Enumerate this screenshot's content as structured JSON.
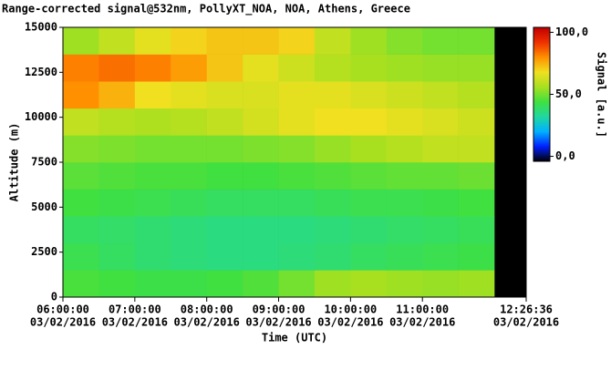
{
  "chart_data": {
    "type": "heatmap",
    "title": "Range-corrected signal@532nm, PollyXT_NOA, NOA, Athens, Greece",
    "xlabel": "Time (UTC)",
    "ylabel": "Altitude (m)",
    "colorbar_label": "Signal [a.u.]",
    "x_edges": [
      6,
      6.5,
      7,
      7.5,
      8,
      8.5,
      9,
      9.5,
      10,
      10.5,
      11,
      11.5,
      12
    ],
    "y_edges": [
      0,
      1500,
      3000,
      4500,
      6000,
      7500,
      9000,
      10500,
      12000,
      13500,
      15000
    ],
    "z": [
      [
        45,
        44,
        43,
        43,
        44,
        46,
        50,
        55,
        56,
        55,
        54,
        55
      ],
      [
        42,
        40,
        38,
        37,
        36,
        36,
        37,
        38,
        40,
        41,
        42,
        43
      ],
      [
        40,
        39,
        38,
        37,
        36,
        36,
        36,
        37,
        38,
        39,
        40,
        41
      ],
      [
        44,
        43,
        42,
        41,
        40,
        40,
        40,
        41,
        42,
        42,
        43,
        44
      ],
      [
        47,
        46,
        45,
        45,
        44,
        44,
        45,
        46,
        47,
        48,
        48,
        49
      ],
      [
        52,
        51,
        50,
        50,
        50,
        51,
        52,
        54,
        56,
        58,
        60,
        60
      ],
      [
        60,
        58,
        57,
        58,
        60,
        63,
        66,
        68,
        68,
        66,
        64,
        62
      ],
      [
        80,
        75,
        68,
        66,
        64,
        64,
        66,
        66,
        64,
        62,
        60,
        58
      ],
      [
        82,
        84,
        82,
        78,
        72,
        66,
        62,
        58,
        56,
        55,
        54,
        54
      ],
      [
        55,
        60,
        66,
        70,
        72,
        72,
        70,
        60,
        55,
        52,
        50,
        50
      ]
    ],
    "xlim": [
      6,
      12.4433
    ],
    "ylim": [
      0,
      15000
    ],
    "clim": [
      -4,
      104
    ],
    "xticks": [
      {
        "value": 6,
        "label": "06:00:00"
      },
      {
        "value": 7,
        "label": "07:00:00"
      },
      {
        "value": 8,
        "label": "08:00:00"
      },
      {
        "value": 9,
        "label": "09:00:00"
      },
      {
        "value": 10,
        "label": "10:00:00"
      },
      {
        "value": 11,
        "label": "11:00:00"
      },
      {
        "value": 12.4433,
        "label": "12:26:36"
      }
    ],
    "xtick_dates": [
      "03/02/2016",
      "03/02/2016",
      "03/02/2016",
      "03/02/2016",
      "03/02/2016",
      "03/02/2016",
      "03/02/2016"
    ],
    "yticks": [
      0,
      2500,
      5000,
      7500,
      10000,
      12500,
      15000
    ],
    "cticks": [
      {
        "value": 0,
        "label": "0,0"
      },
      {
        "value": 50,
        "label": "50,0"
      },
      {
        "value": 100,
        "label": "100,0"
      }
    ],
    "colorscale": [
      "#000000",
      "#0020ff",
      "#00b0ff",
      "#20d8a0",
      "#40e040",
      "#a8e020",
      "#f0e020",
      "#ff9000",
      "#f03000",
      "#c00000",
      "#ffffff"
    ]
  }
}
